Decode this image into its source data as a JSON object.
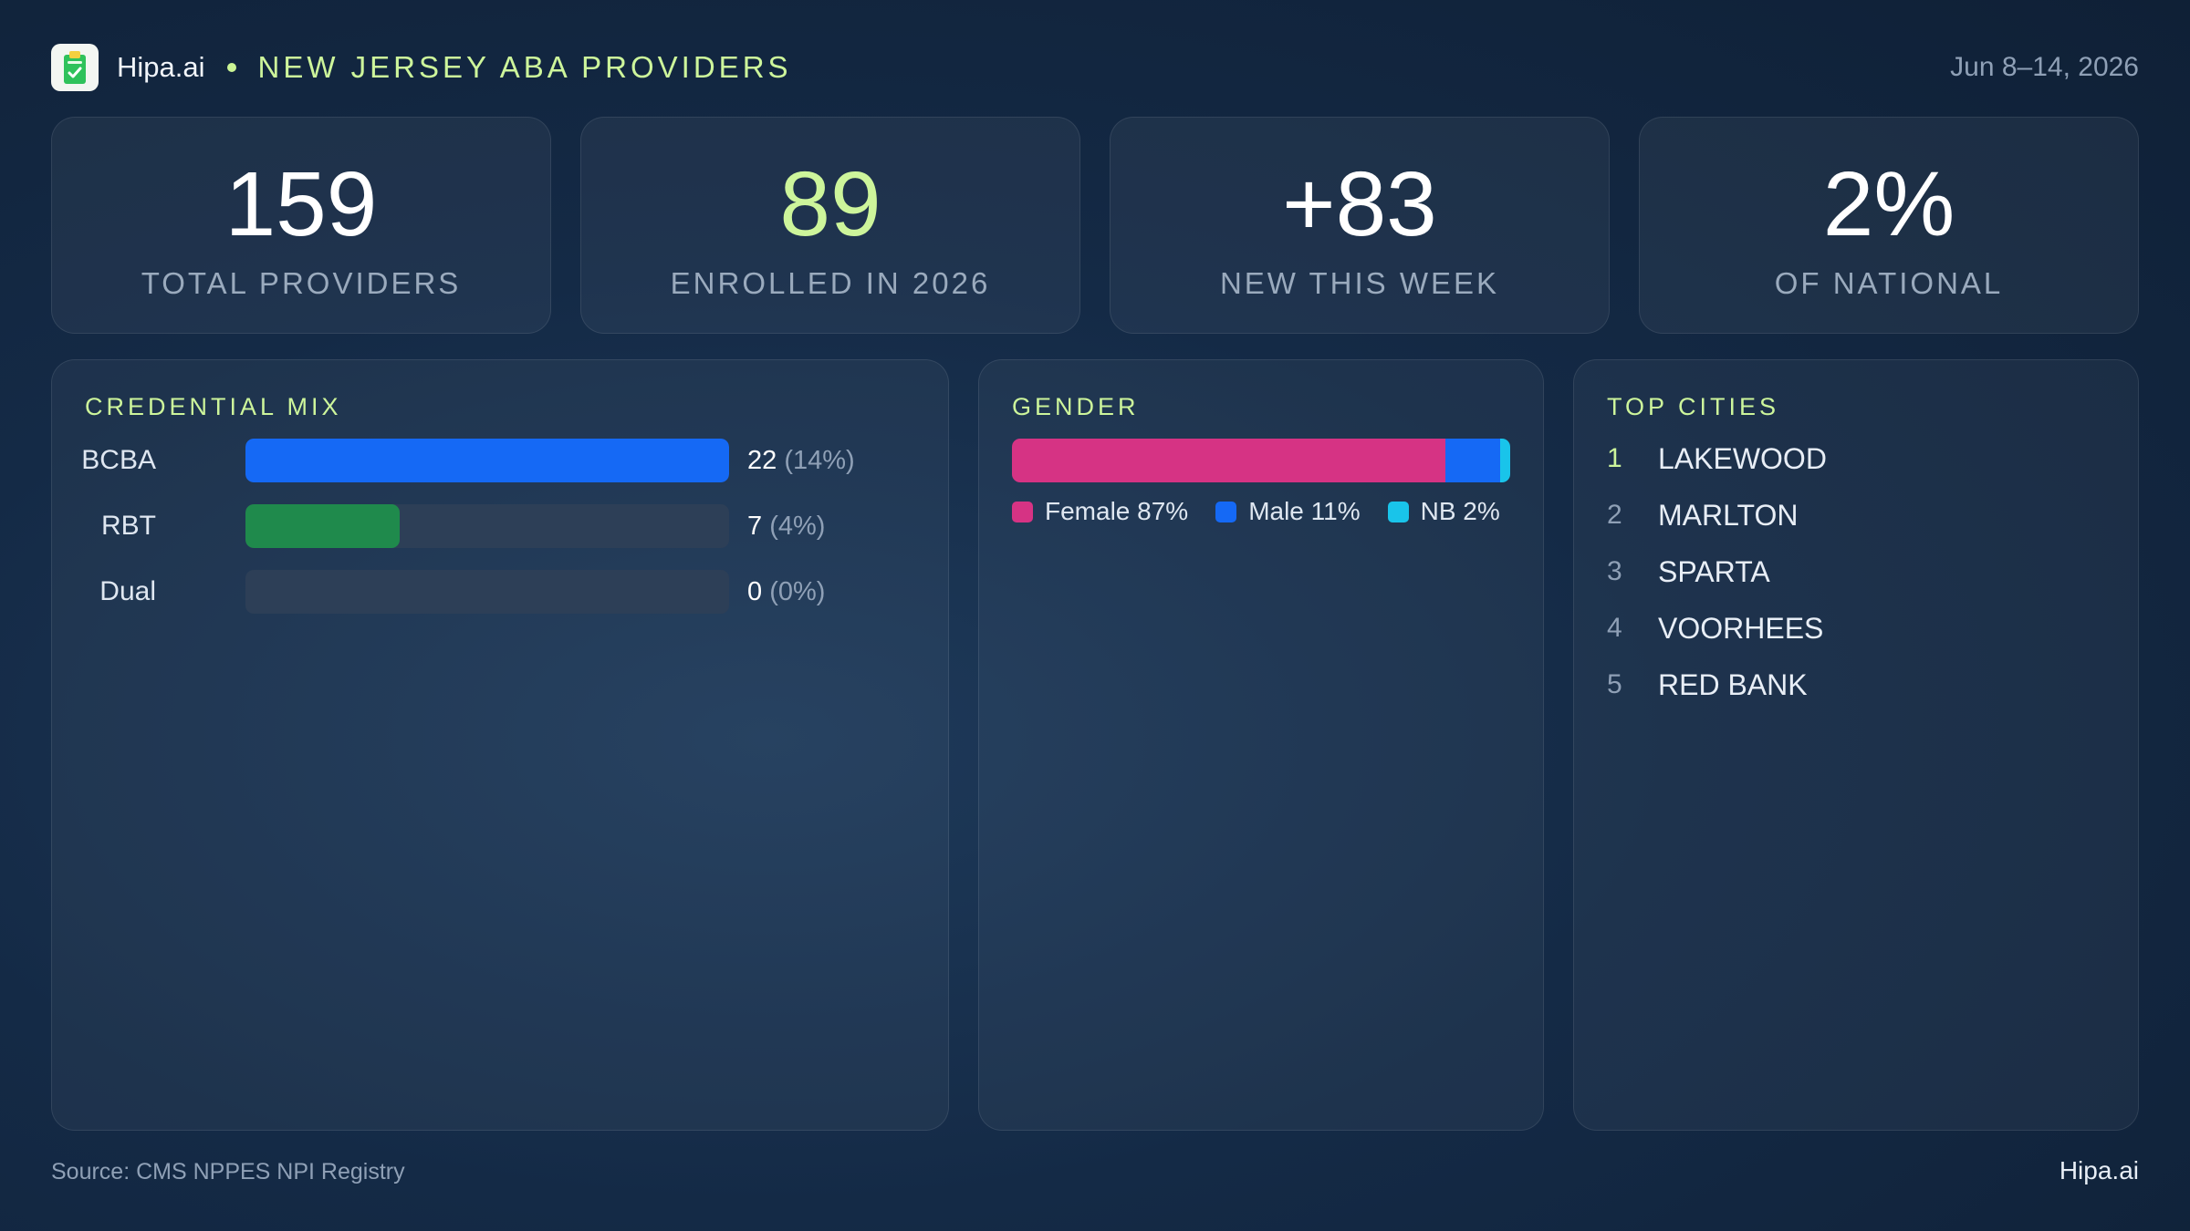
{
  "header": {
    "brand": "Hipa.ai",
    "title": "NEW JERSEY ABA PROVIDERS",
    "date_range": "Jun 8–14, 2026",
    "logo_icon": "clipboard-check-icon"
  },
  "stats": [
    {
      "value": "159",
      "label": "TOTAL PROVIDERS"
    },
    {
      "value": "89",
      "label": "ENROLLED IN 2026",
      "accent": "#cdf59b"
    },
    {
      "value": "+83",
      "label": "NEW THIS WEEK"
    },
    {
      "value": "2%",
      "label": "OF NATIONAL"
    }
  ],
  "credential_mix": {
    "title": "CREDENTIAL MIX",
    "items": [
      {
        "label": "BCBA",
        "count": "22",
        "pct": "(14%)",
        "color": "#1569f5"
      },
      {
        "label": "RBT",
        "count": "7",
        "pct": "(4%)",
        "color": "#1f8a4c"
      },
      {
        "label": "Dual",
        "count": "0",
        "pct": "(0%)",
        "color": "#2d3f57"
      }
    ]
  },
  "gender": {
    "title": "GENDER",
    "segments": [
      {
        "label": "Female 87%",
        "share": 87,
        "color": "#d63384"
      },
      {
        "label": "Male 11%",
        "share": 11,
        "color": "#1569f5"
      },
      {
        "label": "NB 2%",
        "share": 2,
        "color": "#19c4ea"
      }
    ]
  },
  "top_cities": {
    "title": "TOP CITIES",
    "items": [
      {
        "rank": "1",
        "name": "LAKEWOOD"
      },
      {
        "rank": "2",
        "name": "MARLTON"
      },
      {
        "rank": "3",
        "name": "SPARTA"
      },
      {
        "rank": "4",
        "name": "VOORHEES"
      },
      {
        "rank": "5",
        "name": "RED BANK"
      }
    ]
  },
  "footer": {
    "source": "Source: CMS NPPES NPI Registry",
    "brand": "Hipa.ai"
  }
}
